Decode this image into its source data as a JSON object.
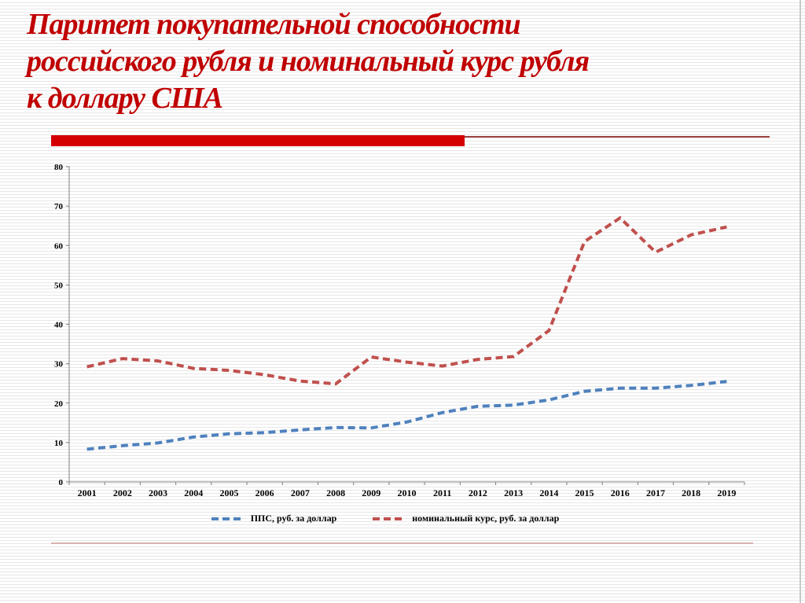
{
  "slide": {
    "title_lines": [
      "Паритет покупательной способности",
      "российского рубля и номинальный курс рубля",
      "к доллару США"
    ]
  },
  "colors": {
    "title": "#c00000",
    "divider_bar": "#d40000",
    "divider_line": "#9e4040",
    "footer_line": "#d8b2b2",
    "axis": "#7f7f7f"
  },
  "chart_data": {
    "type": "line",
    "line_style": "dashed",
    "title": "",
    "xlabel": "",
    "ylabel": "",
    "x": [
      2001,
      2002,
      2003,
      2004,
      2005,
      2006,
      2007,
      2008,
      2009,
      2010,
      2011,
      2012,
      2013,
      2014,
      2015,
      2016,
      2017,
      2018,
      2019
    ],
    "series": [
      {
        "name": "ППС, руб. за доллар",
        "color": "#4f81bd",
        "values": [
          8.3,
          9.2,
          9.9,
          11.4,
          12.2,
          12.5,
          13.2,
          13.8,
          13.7,
          15.2,
          17.6,
          19.2,
          19.5,
          20.8,
          23.0,
          23.8,
          23.8,
          24.5,
          25.5
        ]
      },
      {
        "name": "номинальный курс, руб. за доллар",
        "color": "#c0504d",
        "values": [
          29.2,
          31.3,
          30.7,
          28.8,
          28.3,
          27.2,
          25.6,
          24.9,
          31.7,
          30.4,
          29.4,
          31.1,
          31.8,
          38.4,
          61.0,
          67.0,
          58.3,
          62.7,
          64.7
        ]
      }
    ],
    "ylim": [
      0,
      80
    ],
    "ytick_step": 10,
    "grid": false,
    "legend_position": "bottom"
  }
}
